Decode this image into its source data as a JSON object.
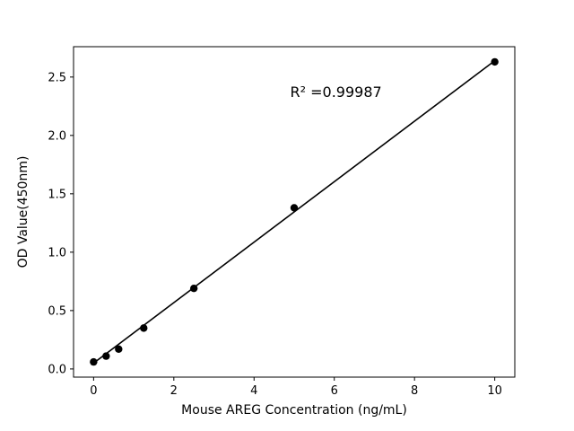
{
  "chart_data": {
    "type": "scatter",
    "title": "",
    "xlabel": "Mouse AREG Concentration (ng/mL)",
    "ylabel": "OD Value(450nm)",
    "annotation": "R² =0.99987",
    "annotation_pos": {
      "x": 4.9,
      "y": 2.33
    },
    "x": [
      0,
      0.3125,
      0.625,
      1.25,
      2.5,
      5,
      10
    ],
    "y": [
      0.06,
      0.11,
      0.17,
      0.35,
      0.69,
      1.38,
      2.63
    ],
    "fit_line": {
      "x": [
        0,
        10
      ],
      "y": [
        0.05,
        2.64
      ]
    },
    "xticks": [
      0,
      2,
      4,
      6,
      8,
      10
    ],
    "xtick_labels": [
      "0",
      "2",
      "4",
      "6",
      "8",
      "10"
    ],
    "yticks": [
      0.0,
      0.5,
      1.0,
      1.5,
      2.0,
      2.5
    ],
    "ytick_labels": [
      "0.0",
      "0.5",
      "1.0",
      "1.5",
      "2.0",
      "2.5"
    ],
    "xlim": [
      -0.5,
      10.5
    ],
    "ylim": [
      -0.07,
      2.76
    ],
    "marker_color": "#000000",
    "line_color": "#000000",
    "background_color": "#ffffff",
    "grid": false,
    "legend": "none"
  }
}
